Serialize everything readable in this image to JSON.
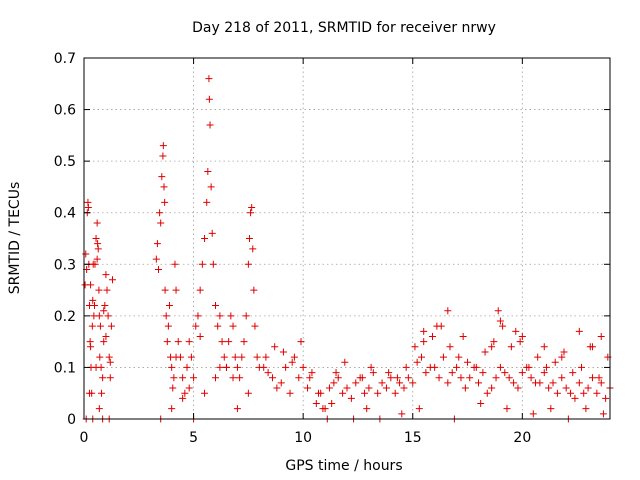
{
  "chart_data": {
    "type": "scatter",
    "title": "Day 218 of 2011, SRMTID for receiver nrwy",
    "xlabel": "GPS time / hours",
    "ylabel": "SRMTID / TECUs",
    "xlim": [
      0,
      24
    ],
    "ylim": [
      0,
      0.7
    ],
    "xticks": [
      0,
      5,
      10,
      15,
      20
    ],
    "yticks": [
      0,
      0.1,
      0.2,
      0.3,
      0.4,
      0.5,
      0.6,
      0.7
    ],
    "grid": true,
    "marker": "+",
    "color": "#e00000",
    "series": [
      {
        "x": [
          0.05,
          0.08,
          0.12,
          0.15,
          0.18,
          0.2,
          0.22,
          0.25,
          0.28,
          0.3,
          0.32,
          0.35,
          0.38,
          0.4,
          0.42,
          0.45,
          0.48,
          0.5,
          0.55,
          0.6,
          0.62,
          0.65,
          0.68,
          0.7,
          0.72,
          0.75,
          0.78,
          0.8,
          0.85,
          0.9,
          0.95,
          1.0,
          1.05,
          1.1,
          1.15,
          1.2,
          1.25,
          1.3,
          0.1,
          0.25,
          0.4,
          0.55,
          0.7,
          0.85,
          1.0,
          1.15,
          0.3,
          0.6,
          0.9,
          1.2,
          3.3,
          3.35,
          3.4,
          3.45,
          3.5,
          3.55,
          3.6,
          3.62,
          3.65,
          3.68,
          3.7,
          3.75,
          3.8,
          3.85,
          3.9,
          3.95,
          4.0,
          4.05,
          4.1,
          4.15,
          4.2,
          4.3,
          4.4,
          4.5,
          4.6,
          4.7,
          4.8,
          4.9,
          5.0,
          5.1,
          5.2,
          5.3,
          5.4,
          5.5,
          5.6,
          5.65,
          5.7,
          5.72,
          5.75,
          5.8,
          5.85,
          5.9,
          6.0,
          6.1,
          6.2,
          6.3,
          6.4,
          6.5,
          6.6,
          6.7,
          6.8,
          6.9,
          7.0,
          7.1,
          7.2,
          7.3,
          7.4,
          7.5,
          7.55,
          7.6,
          7.65,
          7.7,
          7.75,
          7.8,
          7.9,
          8.0,
          3.5,
          4.0,
          4.5,
          5.0,
          5.5,
          6.0,
          6.5,
          7.0,
          7.5,
          4.2,
          4.8,
          5.3,
          6.2,
          6.8,
          8.2,
          8.4,
          8.6,
          8.8,
          9.0,
          9.2,
          9.4,
          9.6,
          9.8,
          10.0,
          10.2,
          10.4,
          10.6,
          10.8,
          11.0,
          11.2,
          11.4,
          11.6,
          11.8,
          12.0,
          12.2,
          12.4,
          12.6,
          12.8,
          13.0,
          13.2,
          13.4,
          13.6,
          13.8,
          14.0,
          14.2,
          14.4,
          14.6,
          14.8,
          15.0,
          15.2,
          15.4,
          15.6,
          15.8,
          16.0,
          16.2,
          16.4,
          16.6,
          16.8,
          17.0,
          17.2,
          17.4,
          17.6,
          17.8,
          18.0,
          18.2,
          18.4,
          18.6,
          18.8,
          19.0,
          19.2,
          19.4,
          19.6,
          19.8,
          20.0,
          20.2,
          20.4,
          20.6,
          20.8,
          21.0,
          21.2,
          21.4,
          21.6,
          21.8,
          22.0,
          22.2,
          22.4,
          22.6,
          22.8,
          23.0,
          23.2,
          23.4,
          23.6,
          23.8,
          24.0,
          8.3,
          8.7,
          9.1,
          9.5,
          9.9,
          10.3,
          10.7,
          11.1,
          11.5,
          11.9,
          12.3,
          12.7,
          13.1,
          13.5,
          13.9,
          14.3,
          14.7,
          15.1,
          15.5,
          15.9,
          16.3,
          16.7,
          17.1,
          17.5,
          17.9,
          18.3,
          18.7,
          19.1,
          19.5,
          19.9,
          20.3,
          20.7,
          21.1,
          21.5,
          21.9,
          22.3,
          22.7,
          23.1,
          23.5,
          23.9,
          15.5,
          16.1,
          16.6,
          17.3,
          18.6,
          18.9,
          19.0,
          19.7,
          20.0,
          21.0,
          21.8,
          22.6,
          23.2,
          23.6,
          10.9,
          11.3,
          12.9,
          14.5,
          15.3,
          16.9,
          18.1,
          19.3,
          20.5,
          21.3,
          22.1,
          22.9,
          23.7
        ],
        "y": [
          0.26,
          0.32,
          0.29,
          0.4,
          0.42,
          0.41,
          0.3,
          0.22,
          0.15,
          0.14,
          0.1,
          0.05,
          0.18,
          0.23,
          0.3,
          0.2,
          0.22,
          0.3,
          0.35,
          0.38,
          0.34,
          0.33,
          0.25,
          0.2,
          0.12,
          0.18,
          0.1,
          0.05,
          0.08,
          0.15,
          0.22,
          0.28,
          0.25,
          0.2,
          0.12,
          0.08,
          0.18,
          0.27,
          0.0,
          0.05,
          0.0,
          0.1,
          0.02,
          0.0,
          0.16,
          0.0,
          0.26,
          0.31,
          0.21,
          0.11,
          0.31,
          0.34,
          0.29,
          0.4,
          0.38,
          0.47,
          0.51,
          0.53,
          0.45,
          0.42,
          0.25,
          0.2,
          0.15,
          0.18,
          0.22,
          0.12,
          0.1,
          0.06,
          0.08,
          0.3,
          0.25,
          0.15,
          0.12,
          0.08,
          0.05,
          0.1,
          0.15,
          0.12,
          0.08,
          0.18,
          0.2,
          0.25,
          0.3,
          0.35,
          0.42,
          0.48,
          0.66,
          0.62,
          0.57,
          0.45,
          0.36,
          0.3,
          0.22,
          0.18,
          0.2,
          0.15,
          0.12,
          0.1,
          0.15,
          0.2,
          0.18,
          0.12,
          0.1,
          0.08,
          0.12,
          0.15,
          0.2,
          0.3,
          0.35,
          0.4,
          0.41,
          0.33,
          0.25,
          0.18,
          0.12,
          0.1,
          0.0,
          0.02,
          0.04,
          0.0,
          0.05,
          0.08,
          0.1,
          0.02,
          0.05,
          0.12,
          0.06,
          0.16,
          0.1,
          0.08,
          0.1,
          0.09,
          0.08,
          0.06,
          0.07,
          0.1,
          0.05,
          0.12,
          0.08,
          0.1,
          0.06,
          0.09,
          0.03,
          0.05,
          0.02,
          0.06,
          0.07,
          0.08,
          0.05,
          0.06,
          0.04,
          0.07,
          0.08,
          0.05,
          0.06,
          0.09,
          0.05,
          0.07,
          0.06,
          0.08,
          0.05,
          0.07,
          0.06,
          0.08,
          0.07,
          0.11,
          0.12,
          0.09,
          0.1,
          0.1,
          0.08,
          0.12,
          0.07,
          0.09,
          0.1,
          0.08,
          0.06,
          0.08,
          0.1,
          0.07,
          0.09,
          0.05,
          0.06,
          0.08,
          0.1,
          0.09,
          0.08,
          0.07,
          0.06,
          0.09,
          0.1,
          0.08,
          0.07,
          0.07,
          0.09,
          0.06,
          0.07,
          0.05,
          0.08,
          0.06,
          0.05,
          0.04,
          0.07,
          0.05,
          0.06,
          0.08,
          0.05,
          0.07,
          0.04,
          0.06,
          0.12,
          0.14,
          0.13,
          0.11,
          0.15,
          0.08,
          0.05,
          0.0,
          0.09,
          0.11,
          0.0,
          0.08,
          0.1,
          0.0,
          0.09,
          0.08,
          0.1,
          0.14,
          0.17,
          0.16,
          0.18,
          0.14,
          0.12,
          0.11,
          0.1,
          0.13,
          0.15,
          0.18,
          0.14,
          0.15,
          0.1,
          0.12,
          0.1,
          0.11,
          0.13,
          0.09,
          0.1,
          0.14,
          0.08,
          0.12,
          0.15,
          0.18,
          0.21,
          0.16,
          0.14,
          0.21,
          0.19,
          0.17,
          0.16,
          0.14,
          0.12,
          0.17,
          0.14,
          0.16,
          0.02,
          0.03,
          0.02,
          0.01,
          0.02,
          0.0,
          0.03,
          0.02,
          0.01,
          0.02,
          0.0,
          0.02,
          0.01
        ]
      }
    ]
  }
}
